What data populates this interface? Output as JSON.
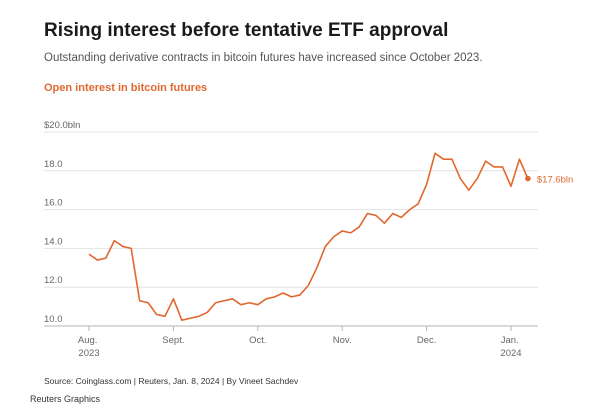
{
  "chart_data": {
    "type": "line",
    "title": "Rising interest before tentative ETF approval",
    "subtitle": "Outstanding derivative contracts in bitcoin futures have increased since October 2023.",
    "chart_label": "Open interest in bitcoin futures",
    "source": "Source: Coinglass.com | Reuters, Jan. 8, 2024 | By Vineet Sachdev",
    "credit": "Reuters Graphics",
    "categories": [
      "Aug. 2023",
      null,
      null,
      null,
      null,
      null,
      null,
      null,
      null,
      null,
      "Sept.",
      null,
      null,
      null,
      null,
      null,
      null,
      null,
      null,
      null,
      "Oct.",
      null,
      null,
      null,
      null,
      null,
      null,
      null,
      null,
      null,
      "Nov.",
      null,
      null,
      null,
      null,
      null,
      null,
      null,
      null,
      null,
      "Dec.",
      null,
      null,
      null,
      null,
      null,
      null,
      null,
      null,
      null,
      "Jan. 2024",
      null,
      null
    ],
    "series": [
      {
        "name": "Open interest in bitcoin futures",
        "color": "#e0682f",
        "values": [
          13.7,
          13.4,
          13.5,
          14.4,
          14.1,
          14.0,
          11.3,
          11.2,
          10.6,
          10.5,
          11.4,
          10.3,
          10.4,
          10.5,
          10.7,
          11.2,
          11.3,
          11.4,
          11.1,
          11.2,
          11.1,
          11.4,
          11.5,
          11.7,
          11.5,
          11.6,
          12.1,
          13.0,
          14.1,
          14.6,
          14.9,
          14.8,
          15.1,
          15.8,
          15.7,
          15.3,
          15.8,
          15.6,
          16.0,
          16.3,
          17.3,
          18.9,
          18.6,
          18.6,
          17.6,
          17.0,
          17.6,
          18.5,
          18.2,
          18.2,
          17.2,
          18.6,
          17.6
        ],
        "value_labels": [
          null,
          null,
          null,
          null,
          null,
          null,
          null,
          null,
          null,
          null,
          null,
          null,
          null,
          null,
          null,
          null,
          null,
          null,
          null,
          null,
          null,
          null,
          null,
          null,
          null,
          null,
          null,
          null,
          null,
          null,
          null,
          null,
          null,
          null,
          null,
          null,
          null,
          null,
          null,
          null,
          null,
          null,
          null,
          null,
          null,
          null,
          null,
          null,
          null,
          null,
          null,
          null,
          "$17.6bln"
        ]
      }
    ],
    "ylim": [
      10,
      20
    ],
    "yticks": [
      {
        "value": 10,
        "label": "10.0"
      },
      {
        "value": 12,
        "label": "12.0"
      },
      {
        "value": 14,
        "label": "14.0"
      },
      {
        "value": 16,
        "label": "16.0"
      },
      {
        "value": 18,
        "label": "18.0"
      },
      {
        "value": 20,
        "label": "$20.0bln"
      }
    ],
    "grid": true
  }
}
